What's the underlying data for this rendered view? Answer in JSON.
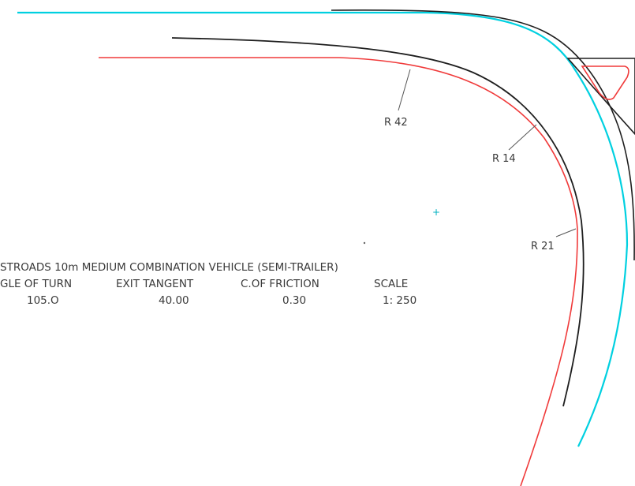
{
  "colors": {
    "background": "#ffffff",
    "cyan_path": "#00d0e0",
    "red_path": "#f03a3a",
    "black_path": "#1e1e1e",
    "text": "#3a3a3a"
  },
  "radius_labels": [
    "R 42",
    "R 14",
    "R 21"
  ],
  "title_block": {
    "vehicle_title": "STROADS 10m MEDIUM COMBINATION VEHICLE (SEMI-TRAILER)",
    "headers": [
      "GLE OF TURN",
      "EXIT TANGENT",
      "C.OF FRICTION",
      "SCALE"
    ],
    "values": [
      "105.O",
      "40.00",
      "0.30",
      "1: 250"
    ]
  }
}
